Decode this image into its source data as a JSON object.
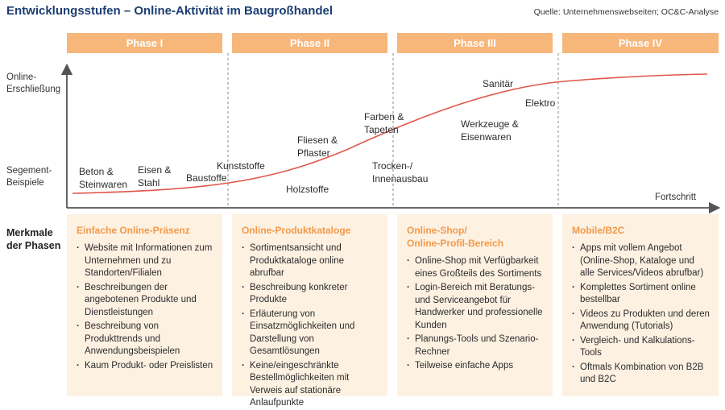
{
  "title": "Entwicklungsstufen – Online-Aktivität im Baugroßhandel",
  "source": "Quelle: Unternehmenswebseiten; OC&C-Analyse",
  "axis": {
    "y_top": "Online-\nErschließung",
    "y_segments": "Segement-\nBeispiele",
    "x": "Fortschritt"
  },
  "merkmale_label": "Merkmale\nder Phasen",
  "phases": [
    {
      "name": "Phase I",
      "heading": "Einfache Online-Präsenz",
      "items": [
        "Website mit Informationen zum Unternehmen und zu Standorten/Filialen",
        "Beschreibungen der angebotenen Produkte und Dienstleistungen",
        "Beschreibung von Produkttrends und Anwendungsbeispielen",
        "Kaum Produkt- oder Preislisten"
      ]
    },
    {
      "name": "Phase II",
      "heading": "Online-Produktkataloge",
      "items": [
        "Sortimentsansicht und Produktkataloge online abrufbar",
        "Beschreibung konkreter Produkte",
        "Erläuterung von Einsatzmöglichkeiten und Darstellung von Gesamtlösungen",
        "Keine/eingeschränkte Bestellmöglichkeiten mit Verweis auf stationäre Anlaufpunkte"
      ]
    },
    {
      "name": "Phase III",
      "heading": "Online-Shop/\nOnline-Profil-Bereich",
      "items": [
        "Online-Shop mit Verfügbarkeit eines Großteils des Sortiments",
        "Login-Bereich mit Beratungs- und Serviceangebot für Handwerker und professionelle Kunden",
        "Planungs-Tools und Szenario-Rechner",
        "Teilweise einfache Apps"
      ]
    },
    {
      "name": "Phase IV",
      "heading": "Mobile/B2C",
      "items": [
        "Apps mit vollem Angebot (Online-Shop, Kataloge und alle Services/Videos abrufbar)",
        "Komplettes Sortiment online bestellbar",
        "Videos zu Produkten und deren Anwendung (Tutorials)",
        "Vergleich- und Kalkulations-Tools",
        "Oftmals Kombination von B2B und B2C"
      ]
    }
  ],
  "segments": [
    "Beton &\nSteinwaren",
    "Eisen &\nStahl",
    "Baustoffe",
    "Kunststoffe",
    "Holzstoffe",
    "Fliesen &\nPflaster",
    "Trocken-/\nInnenausbau",
    "Farben &\nTapeten",
    "Werkzeuge &\nEisenwaren",
    "Sanitär",
    "Elektro"
  ],
  "colors": {
    "title": "#1c3e73",
    "phase_header": "#f7b67a",
    "box_bg": "#fdf1e2",
    "box_heading": "#f29a4a",
    "curve": "#e0574a",
    "axis": "#555555"
  }
}
